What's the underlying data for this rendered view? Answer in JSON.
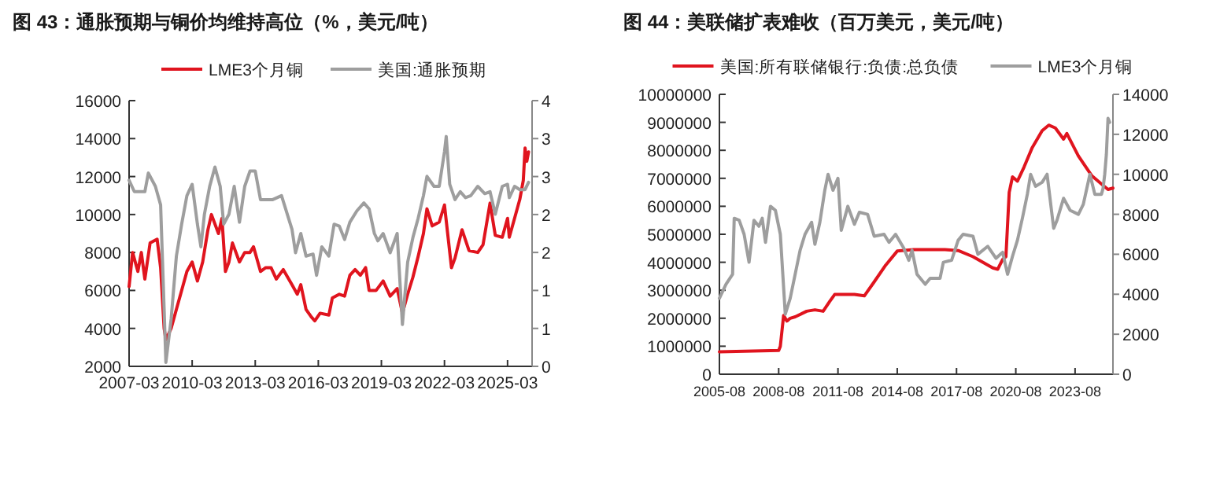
{
  "chart_data": [
    {
      "type": "line",
      "title": "图 43：通胀预期与铜价均维持高位（%，美元/吨）",
      "legend": "top",
      "grid": false,
      "xlim": [
        "2007-03",
        "2026-05"
      ],
      "xticks": [
        "2007-03",
        "2010-03",
        "2013-03",
        "2016-03",
        "2019-03",
        "2022-03",
        "2025-03"
      ],
      "ylim": [
        2000,
        16000
      ],
      "yticks": [
        2000,
        4000,
        6000,
        8000,
        10000,
        12000,
        14000,
        16000
      ],
      "y2lim": [
        0,
        4
      ],
      "y2ticks": [
        {
          "value": 0,
          "label": "0"
        },
        {
          "value": 0.5714,
          "label": "1"
        },
        {
          "value": 1.1429,
          "label": "1"
        },
        {
          "value": 1.7143,
          "label": "2"
        },
        {
          "value": 2.2857,
          "label": "2"
        },
        {
          "value": 2.8571,
          "label": "3"
        },
        {
          "value": 3.4286,
          "label": "3"
        },
        {
          "value": 4,
          "label": "4"
        }
      ],
      "series": [
        {
          "name": "LME3个月铜",
          "color": "#e0141e",
          "axis": "y",
          "x": [
            "2007-03",
            "2007-05",
            "2007-08",
            "2007-10",
            "2007-12",
            "2008-03",
            "2008-07",
            "2008-09",
            "2008-11",
            "2008-12",
            "2009-03",
            "2009-06",
            "2009-09",
            "2009-12",
            "2010-03",
            "2010-06",
            "2010-09",
            "2010-12",
            "2011-02",
            "2011-06",
            "2011-08",
            "2011-10",
            "2011-12",
            "2012-02",
            "2012-06",
            "2012-09",
            "2012-12",
            "2013-02",
            "2013-06",
            "2013-09",
            "2013-12",
            "2014-03",
            "2014-07",
            "2014-12",
            "2015-03",
            "2015-05",
            "2015-08",
            "2015-11",
            "2016-01",
            "2016-04",
            "2016-09",
            "2016-11",
            "2017-03",
            "2017-06",
            "2017-09",
            "2017-12",
            "2018-03",
            "2018-06",
            "2018-08",
            "2018-12",
            "2019-04",
            "2019-08",
            "2019-12",
            "2020-03",
            "2020-06",
            "2020-09",
            "2020-12",
            "2021-03",
            "2021-05",
            "2021-08",
            "2021-12",
            "2022-03",
            "2022-07",
            "2022-09",
            "2023-01",
            "2023-05",
            "2023-10",
            "2024-01",
            "2024-05",
            "2024-08",
            "2024-12",
            "2025-03",
            "2025-04",
            "2025-07",
            "2025-10",
            "2025-12",
            "2026-01",
            "2026-02",
            "2026-03"
          ],
          "values": [
            6200,
            8000,
            7000,
            8000,
            6600,
            8500,
            8700,
            7200,
            4000,
            3400,
            4000,
            5000,
            6000,
            7000,
            7500,
            6500,
            7500,
            9200,
            10000,
            9000,
            9800,
            7000,
            7500,
            8500,
            7500,
            8000,
            8000,
            8300,
            7000,
            7200,
            7200,
            6600,
            7100,
            6300,
            5800,
            6300,
            5000,
            4600,
            4400,
            4800,
            4700,
            5600,
            5800,
            5700,
            6800,
            7100,
            6800,
            7200,
            6000,
            6000,
            6500,
            5700,
            6100,
            4800,
            5800,
            6700,
            7800,
            9000,
            10300,
            9400,
            9600,
            10500,
            7200,
            7700,
            9200,
            8100,
            8000,
            8400,
            10600,
            8900,
            8800,
            9800,
            8800,
            9800,
            10800,
            11800,
            13500,
            12800,
            13300
          ]
        },
        {
          "name": "美国:通胀预期",
          "color": "#9e9e9e",
          "axis": "y2",
          "x": [
            "2007-03",
            "2007-06",
            "2007-12",
            "2008-02",
            "2008-06",
            "2008-09",
            "2008-11",
            "2008-12",
            "2009-03",
            "2009-06",
            "2009-09",
            "2009-12",
            "2010-03",
            "2010-06",
            "2010-08",
            "2010-10",
            "2011-01",
            "2011-04",
            "2011-07",
            "2011-09",
            "2011-12",
            "2012-03",
            "2012-06",
            "2012-09",
            "2012-12",
            "2013-03",
            "2013-06",
            "2013-09",
            "2014-01",
            "2014-06",
            "2014-10",
            "2014-12",
            "2015-02",
            "2015-05",
            "2015-08",
            "2015-12",
            "2016-02",
            "2016-05",
            "2016-09",
            "2016-12",
            "2017-03",
            "2017-06",
            "2017-09",
            "2018-01",
            "2018-05",
            "2018-08",
            "2018-11",
            "2019-01",
            "2019-04",
            "2019-08",
            "2019-12",
            "2020-03",
            "2020-06",
            "2020-09",
            "2020-12",
            "2021-03",
            "2021-05",
            "2021-09",
            "2021-12",
            "2022-03",
            "2022-04",
            "2022-06",
            "2022-09",
            "2022-12",
            "2023-03",
            "2023-06",
            "2023-10",
            "2024-02",
            "2024-05",
            "2024-08",
            "2024-12",
            "2025-03",
            "2025-04",
            "2025-07",
            "2025-10",
            "2026-01",
            "2026-03"
          ],
          "values": [
            2.8,
            2.63,
            2.63,
            2.91,
            2.71,
            2.43,
            0.86,
            0.06,
            0.71,
            1.66,
            2.14,
            2.57,
            2.74,
            2.14,
            1.8,
            2.29,
            2.71,
            3.0,
            2.71,
            2.14,
            2.29,
            2.71,
            2.17,
            2.71,
            2.94,
            2.94,
            2.51,
            2.51,
            2.51,
            2.57,
            2.23,
            2.06,
            1.71,
            2.0,
            1.66,
            1.69,
            1.37,
            1.8,
            1.66,
            2.14,
            2.11,
            1.91,
            2.17,
            2.34,
            2.46,
            2.37,
            2.0,
            1.89,
            2.0,
            1.71,
            2.0,
            0.63,
            1.57,
            1.94,
            2.23,
            2.57,
            2.86,
            2.71,
            2.71,
            3.23,
            3.46,
            2.74,
            2.51,
            2.63,
            2.54,
            2.57,
            2.71,
            2.6,
            2.63,
            2.29,
            2.71,
            2.74,
            2.54,
            2.71,
            2.66,
            2.66,
            2.77
          ]
        }
      ]
    },
    {
      "type": "line",
      "title": "图 44：美联储扩表难收（百万美元，美元/吨）",
      "legend": "top",
      "grid": false,
      "xlim": [
        "2005-08",
        "2025-07"
      ],
      "xticks": [
        "2005-08",
        "2008-08",
        "2011-08",
        "2014-08",
        "2017-08",
        "2020-08",
        "2023-08"
      ],
      "ylim": [
        0,
        10000000
      ],
      "yticks": [
        0,
        1000000,
        2000000,
        3000000,
        4000000,
        5000000,
        6000000,
        7000000,
        8000000,
        9000000,
        10000000
      ],
      "y2lim": [
        0,
        14000
      ],
      "y2ticks": [
        0,
        2000,
        4000,
        6000,
        8000,
        10000,
        12000,
        14000
      ],
      "series": [
        {
          "name": "美国:所有联储银行:负债:总负债",
          "color": "#e0141e",
          "axis": "y",
          "x": [
            "2005-08",
            "2008-08",
            "2008-09",
            "2008-11",
            "2009-01",
            "2009-03",
            "2009-06",
            "2010-01",
            "2010-06",
            "2010-11",
            "2011-03",
            "2011-06",
            "2012-01",
            "2012-06",
            "2012-12",
            "2013-06",
            "2014-01",
            "2014-08",
            "2015-06",
            "2017-01",
            "2017-09",
            "2018-06",
            "2019-06",
            "2019-09",
            "2019-12",
            "2020-02",
            "2020-04",
            "2020-06",
            "2020-09",
            "2021-01",
            "2021-06",
            "2021-12",
            "2022-04",
            "2022-08",
            "2023-01",
            "2023-03",
            "2023-10",
            "2024-06",
            "2024-12",
            "2025-04",
            "2025-07"
          ],
          "values": [
            800000,
            850000,
            1000000,
            2100000,
            1900000,
            2000000,
            2050000,
            2250000,
            2300000,
            2250000,
            2600000,
            2850000,
            2850000,
            2850000,
            2800000,
            3300000,
            3900000,
            4400000,
            4450000,
            4450000,
            4420000,
            4200000,
            3800000,
            3750000,
            4100000,
            4200000,
            6500000,
            7050000,
            6900000,
            7400000,
            8100000,
            8700000,
            8900000,
            8800000,
            8400000,
            8600000,
            7800000,
            7100000,
            6800000,
            6600000,
            6650000
          ]
        },
        {
          "name": "LME3个月铜",
          "color": "#9e9e9e",
          "axis": "y2",
          "x": [
            "2005-08",
            "2005-12",
            "2006-04",
            "2006-05",
            "2006-08",
            "2006-11",
            "2007-02",
            "2007-05",
            "2007-08",
            "2007-10",
            "2007-12",
            "2008-03",
            "2008-06",
            "2008-09",
            "2008-12",
            "2009-03",
            "2009-06",
            "2009-09",
            "2009-12",
            "2010-04",
            "2010-06",
            "2010-09",
            "2010-12",
            "2011-02",
            "2011-05",
            "2011-08",
            "2011-10",
            "2012-02",
            "2012-06",
            "2012-09",
            "2013-02",
            "2013-06",
            "2013-12",
            "2014-03",
            "2014-07",
            "2014-12",
            "2015-03",
            "2015-05",
            "2015-08",
            "2015-11",
            "2016-01",
            "2016-04",
            "2016-10",
            "2016-12",
            "2017-05",
            "2017-09",
            "2017-12",
            "2018-06",
            "2018-09",
            "2019-03",
            "2019-08",
            "2019-12",
            "2020-03",
            "2020-06",
            "2020-09",
            "2020-12",
            "2021-03",
            "2021-05",
            "2021-08",
            "2021-12",
            "2022-03",
            "2022-07",
            "2022-09",
            "2023-01",
            "2023-05",
            "2023-10",
            "2024-01",
            "2024-05",
            "2024-08",
            "2024-12",
            "2025-01",
            "2025-02",
            "2025-03",
            "2025-04",
            "2025-05"
          ],
          "values": [
            3800,
            4500,
            5000,
            7800,
            7700,
            7000,
            5600,
            7700,
            7400,
            7800,
            6600,
            8400,
            8200,
            7000,
            3000,
            3800,
            5000,
            6200,
            7000,
            7600,
            6500,
            7600,
            9200,
            10000,
            9200,
            9800,
            7200,
            8400,
            7500,
            8100,
            8000,
            6900,
            7000,
            6600,
            7000,
            6300,
            5700,
            6200,
            5000,
            4700,
            4500,
            4800,
            4800,
            5600,
            5700,
            6700,
            7000,
            6900,
            6000,
            6400,
            5800,
            6100,
            5000,
            5900,
            6700,
            7800,
            9000,
            10000,
            9400,
            9600,
            10000,
            7300,
            7700,
            8800,
            8200,
            8000,
            8500,
            10000,
            9000,
            9000,
            9300,
            10000,
            11000,
            12800,
            12600
          ]
        }
      ]
    }
  ]
}
